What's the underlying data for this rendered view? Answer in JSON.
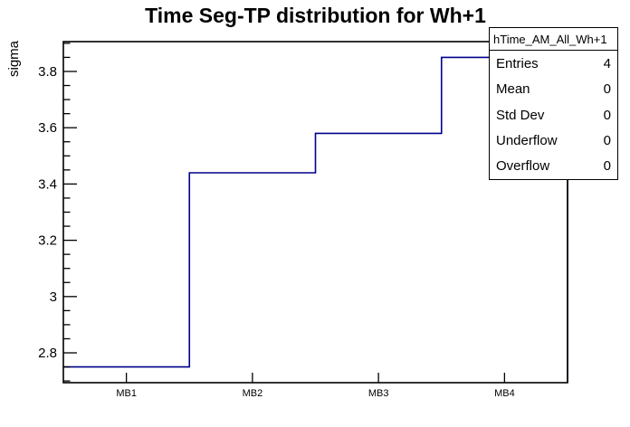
{
  "chart_data": {
    "type": "line",
    "style": "step-histogram",
    "title": "Time Seg-TP distribution for Wh+1",
    "series_name": "hTime_AM_All_Wh+1",
    "categories": [
      "MB1",
      "MB2",
      "MB3",
      "MB4"
    ],
    "values": [
      2.75,
      3.44,
      3.58,
      3.85
    ],
    "xlabel": "",
    "ylabel": "sigma",
    "ylim": [
      2.694,
      3.906
    ],
    "yticks": [
      {
        "value": 2.8,
        "label": "2.8"
      },
      {
        "value": 3.0,
        "label": "3"
      },
      {
        "value": 3.2,
        "label": "3.2"
      },
      {
        "value": 3.4,
        "label": "3.4"
      },
      {
        "value": 3.6,
        "label": "3.6"
      },
      {
        "value": 3.8,
        "label": "3.8"
      }
    ],
    "minor_tick_step": 0.05,
    "grid": false,
    "legend_position": "none",
    "line_color": "#00008b",
    "frame_color": "#000000",
    "text_color": "#000000",
    "stats_box": {
      "title": "hTime_AM_All_Wh+1",
      "rows": [
        {
          "label": "Entries",
          "value": "4"
        },
        {
          "label": "Mean",
          "value": "0"
        },
        {
          "label": "Std Dev",
          "value": "0"
        },
        {
          "label": "Underflow",
          "value": "0"
        },
        {
          "label": "Overflow",
          "value": "0"
        }
      ]
    }
  }
}
